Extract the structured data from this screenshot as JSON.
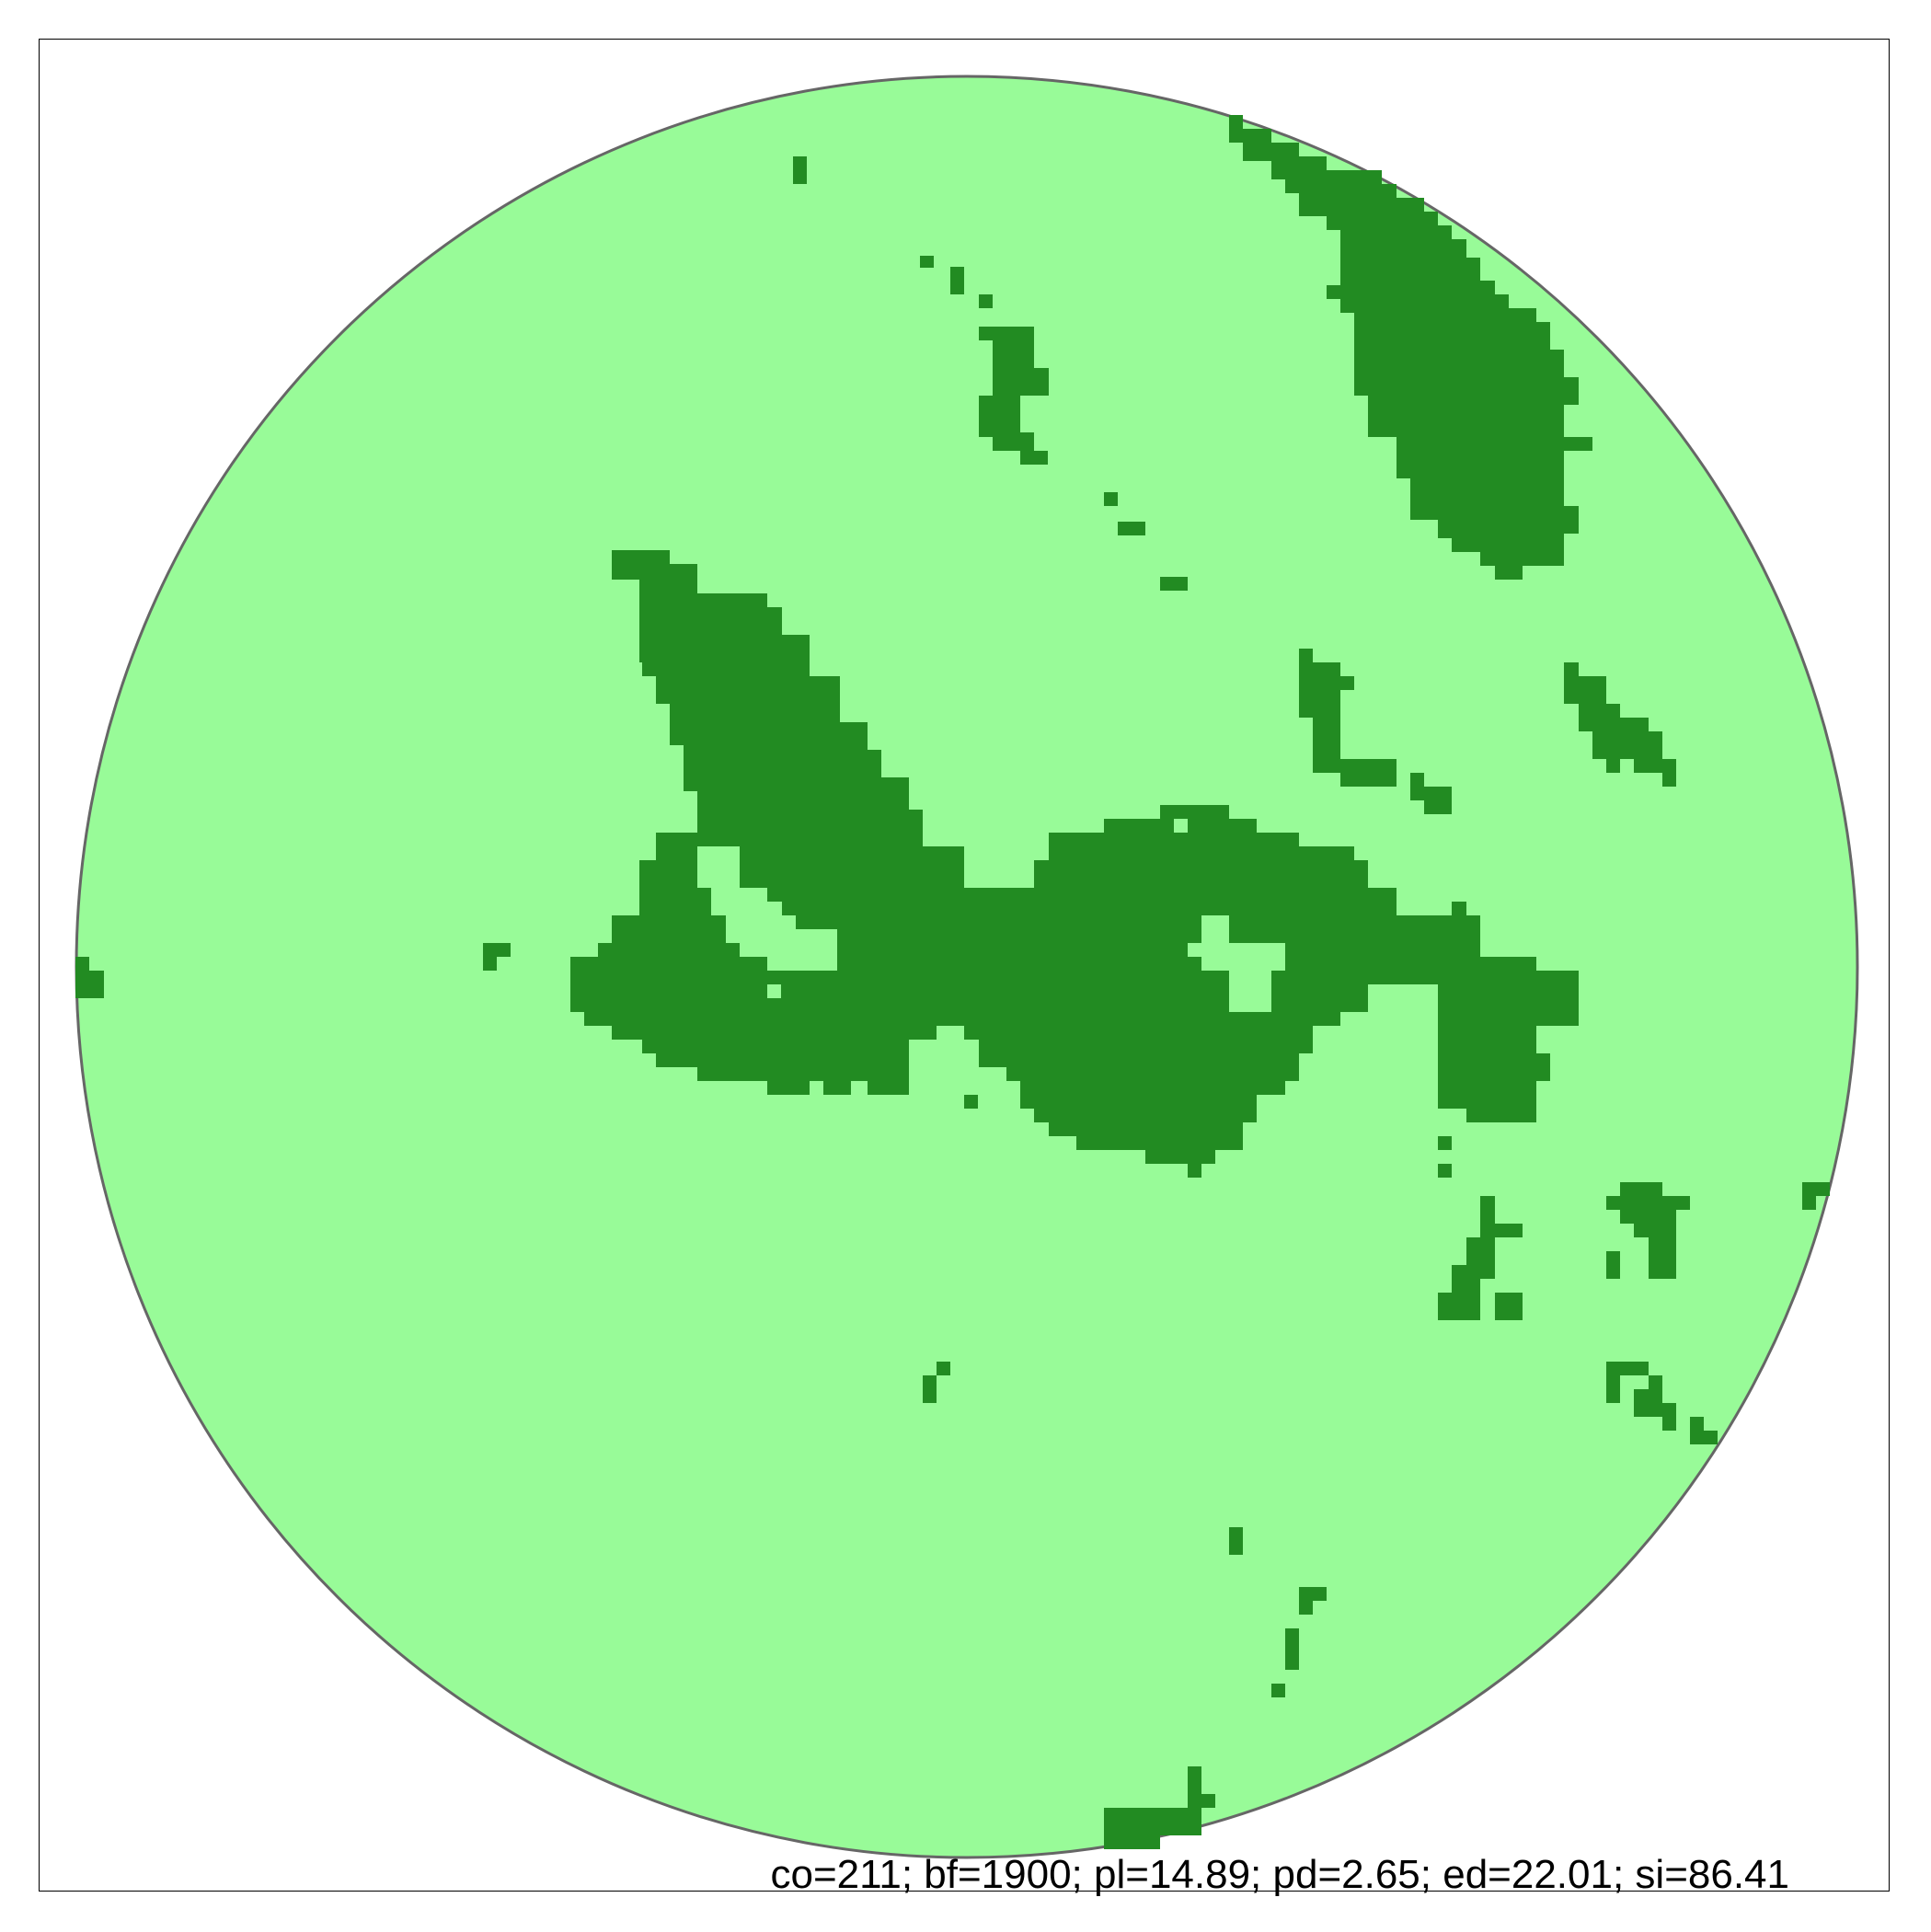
{
  "figure": {
    "caption": "co=211; bf=1900; pl=14.89; pd=2.65; ed=22.01; si=86.41"
  },
  "colors": {
    "background": "#ffffff",
    "frame": "#000000",
    "circle_fill": "#98fb98",
    "circle_outline": "#666666",
    "patch": "#228b22"
  }
}
